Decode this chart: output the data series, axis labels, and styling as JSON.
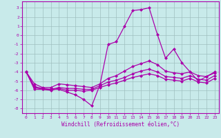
{
  "xlabel": "Windchill (Refroidissement éolien,°C)",
  "bg_color": "#c8eaea",
  "line_color": "#aa00aa",
  "grid_color": "#9fbfbf",
  "spine_color": "#aa00aa",
  "xlim": [
    -0.5,
    23.5
  ],
  "ylim": [
    -8.5,
    3.7
  ],
  "yticks": [
    3,
    2,
    1,
    0,
    -1,
    -2,
    -3,
    -4,
    -5,
    -6,
    -7,
    -8
  ],
  "xticks": [
    0,
    1,
    2,
    3,
    4,
    5,
    6,
    7,
    8,
    9,
    10,
    11,
    12,
    13,
    14,
    15,
    16,
    17,
    18,
    19,
    20,
    21,
    22,
    23
  ],
  "series": [
    {
      "x": [
        0,
        1,
        2,
        3,
        4,
        5,
        6,
        7,
        8,
        9,
        10,
        11,
        12,
        13,
        14,
        15,
        16,
        17,
        18,
        19,
        20,
        21,
        22,
        23
      ],
      "y": [
        -4,
        -5.9,
        -5.9,
        -5.9,
        -5.9,
        -6.2,
        -6.5,
        -7.0,
        -7.7,
        -5.4,
        -1.0,
        -0.7,
        1.0,
        2.7,
        2.8,
        3.0,
        0.1,
        -2.5,
        -1.5,
        -3.0,
        -4.0,
        -5.0,
        -4.5,
        -4.0
      ]
    },
    {
      "x": [
        0,
        1,
        2,
        3,
        4,
        5,
        6,
        7,
        8,
        9,
        10,
        11,
        12,
        13,
        14,
        15,
        16,
        17,
        18,
        19,
        20,
        21,
        22,
        23
      ],
      "y": [
        -4,
        -5.3,
        -5.7,
        -5.7,
        -5.3,
        -5.4,
        -5.5,
        -5.6,
        -5.7,
        -5.3,
        -4.7,
        -4.4,
        -3.9,
        -3.4,
        -3.1,
        -2.8,
        -3.2,
        -3.9,
        -4.1,
        -4.2,
        -4.0,
        -4.4,
        -4.5,
        -4.1
      ]
    },
    {
      "x": [
        0,
        1,
        2,
        3,
        4,
        5,
        6,
        7,
        8,
        9,
        10,
        11,
        12,
        13,
        14,
        15,
        16,
        17,
        18,
        19,
        20,
        21,
        22,
        23
      ],
      "y": [
        -4,
        -5.6,
        -5.8,
        -5.9,
        -5.7,
        -5.8,
        -5.8,
        -5.9,
        -5.9,
        -5.5,
        -5.1,
        -4.9,
        -4.6,
        -4.2,
        -3.9,
        -3.7,
        -4.0,
        -4.5,
        -4.6,
        -4.7,
        -4.4,
        -4.8,
        -4.9,
        -4.4
      ]
    },
    {
      "x": [
        0,
        1,
        2,
        3,
        4,
        5,
        6,
        7,
        8,
        9,
        10,
        11,
        12,
        13,
        14,
        15,
        16,
        17,
        18,
        19,
        20,
        21,
        22,
        23
      ],
      "y": [
        -4,
        -5.7,
        -5.9,
        -6.0,
        -5.8,
        -6.0,
        -6.0,
        -6.1,
        -6.0,
        -5.7,
        -5.4,
        -5.2,
        -4.9,
        -4.6,
        -4.4,
        -4.2,
        -4.4,
        -4.8,
        -4.9,
        -5.0,
        -4.7,
        -5.1,
        -5.2,
        -4.7
      ]
    }
  ]
}
